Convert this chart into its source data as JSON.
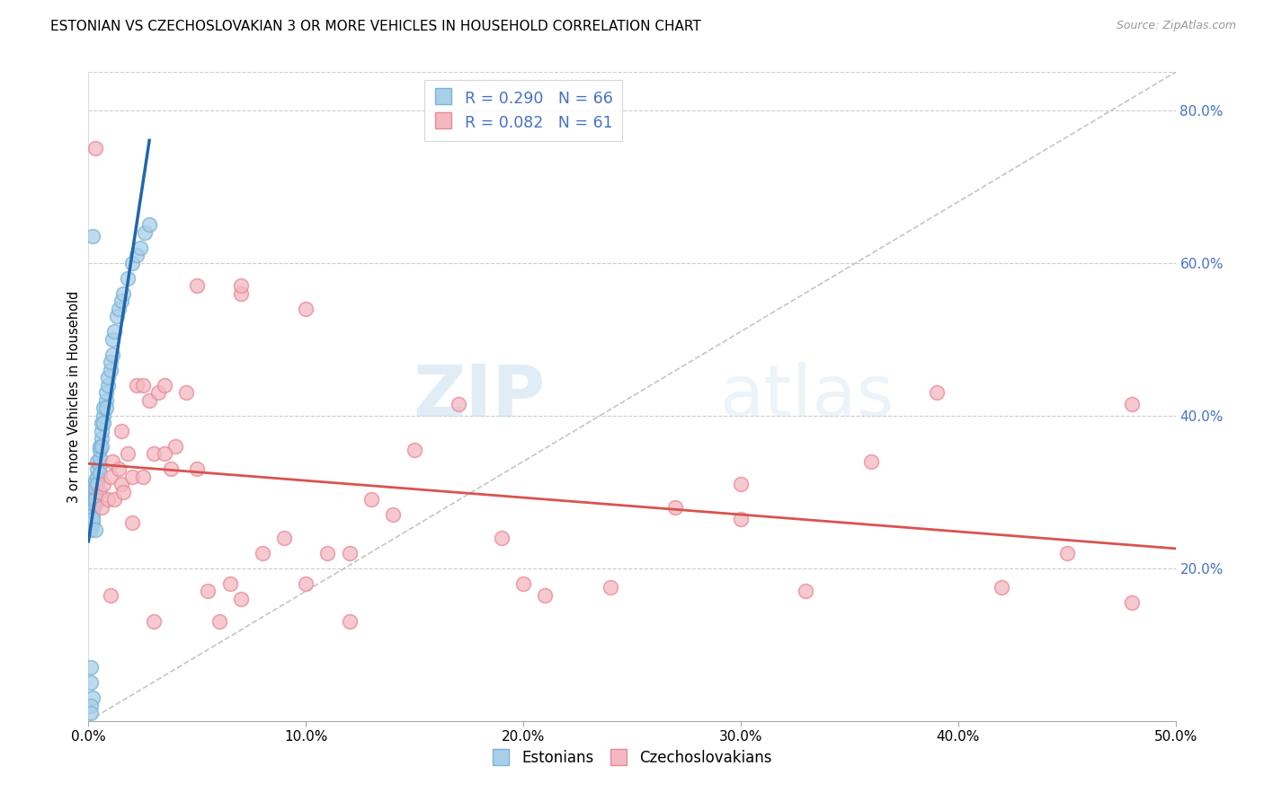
{
  "title": "ESTONIAN VS CZECHOSLOVAKIAN 3 OR MORE VEHICLES IN HOUSEHOLD CORRELATION CHART",
  "source": "Source: ZipAtlas.com",
  "ylabel": "3 or more Vehicles in Household",
  "xlim": [
    0.0,
    0.5
  ],
  "ylim": [
    0.0,
    0.85
  ],
  "xticks": [
    0.0,
    0.1,
    0.2,
    0.3,
    0.4,
    0.5
  ],
  "yticks_right": [
    0.2,
    0.4,
    0.6,
    0.8
  ],
  "ytick_labels_right": [
    "20.0%",
    "40.0%",
    "60.0%",
    "80.0%"
  ],
  "xtick_labels": [
    "0.0%",
    "10.0%",
    "20.0%",
    "30.0%",
    "40.0%",
    "50.0%"
  ],
  "estonian_color": "#a8cfe8",
  "estonian_edge_color": "#7ab3d4",
  "czechoslovakian_color": "#f4b8c1",
  "czechoslovakian_edge_color": "#e88a96",
  "estonian_R": 0.29,
  "estonian_N": 66,
  "czechoslovakian_R": 0.082,
  "czechoslovakian_N": 61,
  "estonian_line_color": "#2166ac",
  "czechoslovakian_line_color": "#d9534f",
  "ref_line_color": "#bbbbbb",
  "background_color": "#ffffff",
  "legend_label_estonian": "Estonians",
  "legend_label_czechoslovakian": "Czechoslovakians",
  "estonian_x": [
    0.001,
    0.001,
    0.001,
    0.001,
    0.001,
    0.001,
    0.001,
    0.002,
    0.002,
    0.002,
    0.002,
    0.002,
    0.002,
    0.002,
    0.002,
    0.002,
    0.003,
    0.003,
    0.003,
    0.003,
    0.003,
    0.003,
    0.003,
    0.004,
    0.004,
    0.004,
    0.004,
    0.005,
    0.005,
    0.005,
    0.005,
    0.005,
    0.006,
    0.006,
    0.006,
    0.006,
    0.007,
    0.007,
    0.007,
    0.008,
    0.008,
    0.008,
    0.009,
    0.009,
    0.01,
    0.01,
    0.011,
    0.011,
    0.012,
    0.013,
    0.014,
    0.015,
    0.016,
    0.018,
    0.02,
    0.022,
    0.024,
    0.026,
    0.028,
    0.002,
    0.001,
    0.001,
    0.002,
    0.003,
    0.001,
    0.001
  ],
  "estonian_y": [
    0.27,
    0.26,
    0.25,
    0.28,
    0.275,
    0.265,
    0.255,
    0.29,
    0.285,
    0.28,
    0.27,
    0.295,
    0.26,
    0.275,
    0.265,
    0.285,
    0.3,
    0.31,
    0.295,
    0.285,
    0.305,
    0.315,
    0.29,
    0.32,
    0.33,
    0.31,
    0.34,
    0.335,
    0.345,
    0.325,
    0.355,
    0.36,
    0.37,
    0.38,
    0.36,
    0.39,
    0.4,
    0.41,
    0.39,
    0.42,
    0.43,
    0.41,
    0.44,
    0.45,
    0.46,
    0.47,
    0.48,
    0.5,
    0.51,
    0.53,
    0.54,
    0.55,
    0.56,
    0.58,
    0.6,
    0.61,
    0.62,
    0.64,
    0.65,
    0.03,
    0.05,
    0.07,
    0.635,
    0.25,
    0.02,
    0.01
  ],
  "czechoslovakian_x": [
    0.003,
    0.005,
    0.006,
    0.007,
    0.009,
    0.01,
    0.011,
    0.012,
    0.014,
    0.015,
    0.016,
    0.018,
    0.02,
    0.022,
    0.025,
    0.028,
    0.03,
    0.032,
    0.035,
    0.038,
    0.04,
    0.045,
    0.05,
    0.055,
    0.06,
    0.065,
    0.07,
    0.08,
    0.09,
    0.1,
    0.11,
    0.12,
    0.13,
    0.15,
    0.17,
    0.19,
    0.21,
    0.24,
    0.27,
    0.3,
    0.33,
    0.36,
    0.39,
    0.42,
    0.45,
    0.48,
    0.015,
    0.025,
    0.035,
    0.05,
    0.07,
    0.1,
    0.14,
    0.02,
    0.48,
    0.3,
    0.2,
    0.12,
    0.07,
    0.03,
    0.01
  ],
  "czechoslovakian_y": [
    0.75,
    0.3,
    0.28,
    0.31,
    0.29,
    0.32,
    0.34,
    0.29,
    0.33,
    0.31,
    0.3,
    0.35,
    0.32,
    0.44,
    0.44,
    0.42,
    0.35,
    0.43,
    0.44,
    0.33,
    0.36,
    0.43,
    0.33,
    0.17,
    0.13,
    0.18,
    0.16,
    0.22,
    0.24,
    0.18,
    0.22,
    0.13,
    0.29,
    0.355,
    0.415,
    0.24,
    0.165,
    0.175,
    0.28,
    0.265,
    0.17,
    0.34,
    0.43,
    0.175,
    0.22,
    0.415,
    0.38,
    0.32,
    0.35,
    0.57,
    0.56,
    0.54,
    0.27,
    0.26,
    0.155,
    0.31,
    0.18,
    0.22,
    0.57,
    0.13,
    0.165
  ]
}
